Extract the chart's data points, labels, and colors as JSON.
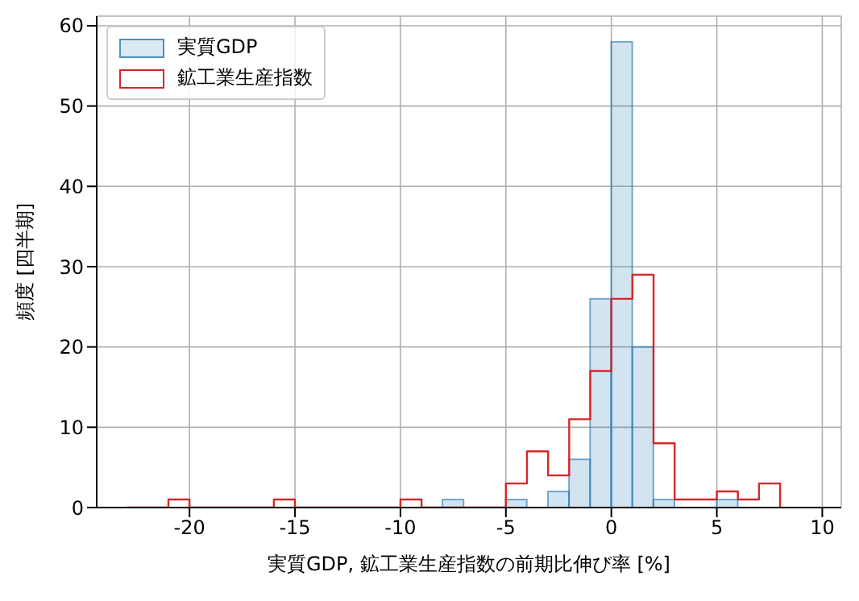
{
  "chart_data": {
    "type": "histogram",
    "xlabel": "実質GDP, 鉱工業生産指数の前期比伸び率 [%]",
    "ylabel": "頻度 [四半期]",
    "bins": [
      -23,
      -22,
      -21,
      -20,
      -19,
      -18,
      -17,
      -16,
      -15,
      -14,
      -13,
      -12,
      -11,
      -10,
      -9,
      -8,
      -7,
      -6,
      -5,
      -4,
      -3,
      -2,
      -1,
      0,
      1,
      2,
      3,
      4,
      5,
      6,
      7,
      8,
      9
    ],
    "series": [
      {
        "name": "実質GDP",
        "color": "#1f77b4",
        "values": [
          0,
          0,
          0,
          0,
          0,
          0,
          0,
          0,
          0,
          0,
          0,
          0,
          0,
          0,
          0,
          1,
          0,
          0,
          1,
          0,
          2,
          6,
          26,
          58,
          20,
          1,
          0,
          0,
          1,
          0,
          0,
          0
        ]
      },
      {
        "name": "鉱工業生産指数",
        "type": "step",
        "color": "#d62728",
        "x": [
          -23,
          -22,
          -21,
          -20,
          -19,
          -18,
          -17,
          -16,
          -15,
          -14,
          -13,
          -12,
          -11,
          -10,
          -9,
          -8,
          -7,
          -6,
          -5,
          -4,
          -3,
          -2,
          -1,
          0,
          1,
          2,
          3,
          4,
          5,
          6,
          7,
          8
        ],
        "values": [
          0,
          0,
          1,
          0,
          0,
          0,
          0,
          1,
          0,
          0,
          0,
          0,
          0,
          1,
          0,
          0,
          0,
          0,
          3,
          7,
          4,
          11,
          17,
          26,
          29,
          8,
          1,
          1,
          2,
          1,
          3,
          0
        ]
      }
    ],
    "xlim": [
      -24.4,
      10.9
    ],
    "xticks": [
      -20,
      -15,
      -10,
      -5,
      0,
      5,
      10
    ],
    "ylim": [
      0,
      61.2
    ],
    "yticks": [
      0,
      10,
      20,
      30,
      40,
      50,
      60
    ],
    "grid": true,
    "legend": "top left"
  }
}
